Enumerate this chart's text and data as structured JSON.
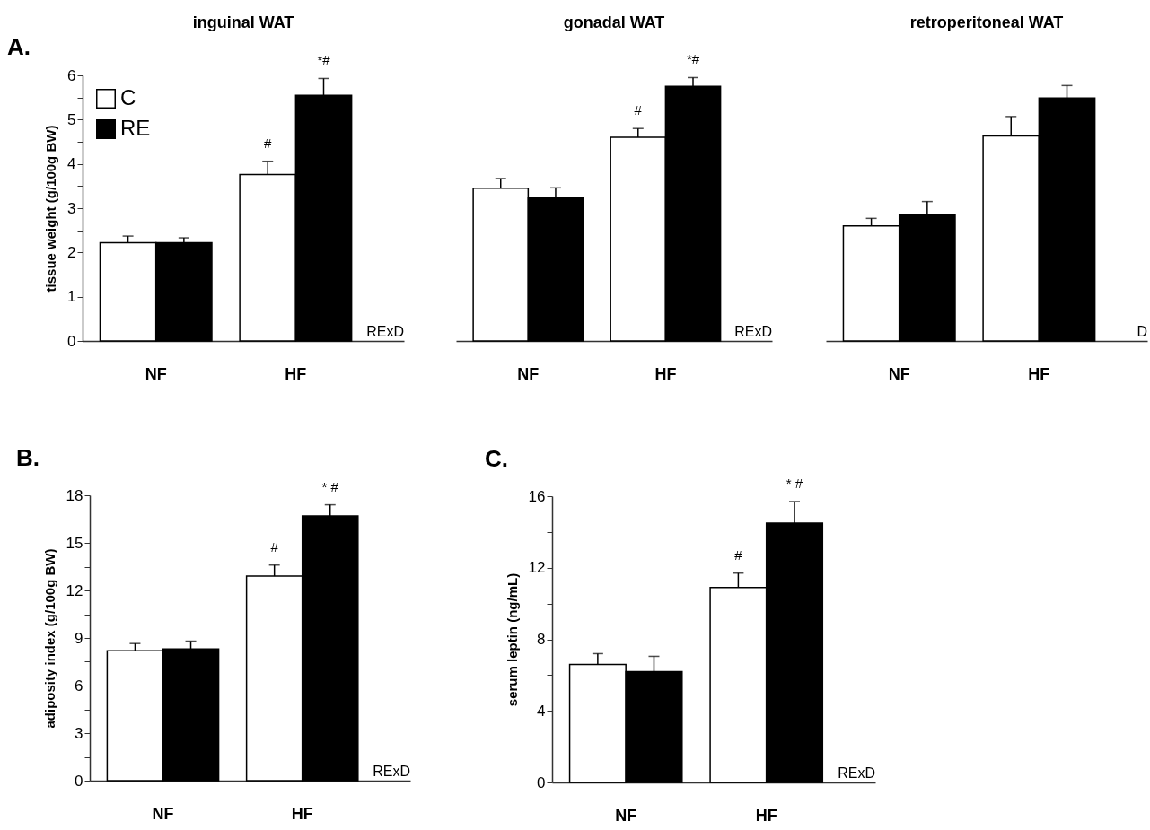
{
  "chart_data": [
    {
      "type": "bar",
      "title": "inguinal WAT",
      "ylabel": "tissue weight (g/100g BW)",
      "categories": [
        "NF",
        "HF"
      ],
      "ylim": [
        0,
        6
      ],
      "yticks": [
        0,
        {
          "value": 0.5,
          "label": null
        },
        1,
        {
          "value": 1.5,
          "label": null
        },
        2,
        {
          "value": 2.5,
          "label": null
        },
        3,
        {
          "value": 3.5,
          "label": null
        },
        4,
        {
          "value": 4.5,
          "label": null
        },
        5,
        {
          "value": 5.5,
          "label": null
        },
        6
      ],
      "legend": "top left",
      "annotations": [
        "RExD",
        "A."
      ],
      "series": [
        {
          "name": "C",
          "color": "#ffffff",
          "values": [
            2.22,
            3.76
          ],
          "errors": [
            [
              2.22,
              2.37
            ],
            [
              3.76,
              4.06
            ]
          ],
          "value_labels": [
            null,
            "#"
          ]
        },
        {
          "name": "RE",
          "color": "#000000",
          "values": [
            2.22,
            5.55
          ],
          "errors": [
            [
              2.22,
              2.33
            ],
            [
              5.55,
              5.93
            ]
          ],
          "value_labels": [
            null,
            "*#"
          ]
        }
      ]
    },
    {
      "type": "bar",
      "title": "gonadal WAT",
      "categories": [
        "NF",
        "HF"
      ],
      "ylim": [
        0,
        6
      ],
      "tick_labels": "x",
      "annotations": [
        "RExD"
      ],
      "series": [
        {
          "color": "#ffffff",
          "values": [
            3.45,
            4.6
          ],
          "errors": [
            [
              3.45,
              3.67
            ],
            [
              4.6,
              4.8
            ]
          ],
          "value_labels": [
            null,
            "#"
          ]
        },
        {
          "color": "#000000",
          "values": [
            3.25,
            5.75
          ],
          "errors": [
            [
              3.25,
              3.46
            ],
            [
              5.75,
              5.95
            ]
          ],
          "value_labels": [
            null,
            "*#"
          ]
        }
      ]
    },
    {
      "type": "bar",
      "title": "retroperitoneal WAT",
      "categories": [
        "NF",
        "HF"
      ],
      "ylim": [
        0,
        6
      ],
      "tick_labels": "x",
      "annotations": [
        "D"
      ],
      "series": [
        {
          "color": "#ffffff",
          "values": [
            2.6,
            4.63
          ],
          "errors": [
            [
              2.6,
              2.77
            ],
            [
              4.63,
              5.07
            ]
          ]
        },
        {
          "color": "#000000",
          "values": [
            2.85,
            5.49
          ],
          "errors": [
            [
              2.85,
              3.15
            ],
            [
              5.49,
              5.77
            ]
          ]
        }
      ]
    },
    {
      "type": "bar",
      "ylabel": "adiposity index (g/100g BW)",
      "categories": [
        "NF",
        "HF"
      ],
      "ylim": [
        0,
        18
      ],
      "yticks": [
        0,
        {
          "value": 1.5,
          "label": null
        },
        3,
        {
          "value": 4.5,
          "label": null
        },
        6,
        {
          "value": 7.5,
          "label": null
        },
        9,
        {
          "value": 10.5,
          "label": null
        },
        12,
        {
          "value": 13.5,
          "label": null
        },
        15,
        {
          "value": 16.5,
          "label": null
        },
        18
      ],
      "annotations": [
        "RExD",
        "B."
      ],
      "series": [
        {
          "color": "#ffffff",
          "values": [
            8.2,
            12.9
          ],
          "errors": [
            [
              8.2,
              8.65
            ],
            [
              12.9,
              13.6
            ]
          ],
          "value_labels": [
            null,
            "#"
          ]
        },
        {
          "color": "#000000",
          "values": [
            8.3,
            16.7
          ],
          "errors": [
            [
              8.3,
              8.8
            ],
            [
              16.7,
              17.4
            ]
          ],
          "value_labels": [
            null,
            "*  #"
          ]
        }
      ]
    },
    {
      "type": "bar",
      "ylabel": "serum leptin (ng/mL)",
      "categories": [
        "NF",
        "HF"
      ],
      "ylim": [
        0,
        16
      ],
      "yticks": [
        0,
        {
          "value": 2,
          "label": null
        },
        4,
        {
          "value": 6,
          "label": null
        },
        8,
        {
          "value": 10,
          "label": null
        },
        12,
        {
          "value": 14,
          "label": null
        },
        16
      ],
      "annotations": [
        "RExD",
        "C."
      ],
      "series": [
        {
          "color": "#ffffff",
          "values": [
            6.6,
            10.9
          ],
          "errors": [
            [
              6.6,
              7.2
            ],
            [
              10.9,
              11.7
            ]
          ],
          "value_labels": [
            null,
            "#"
          ]
        },
        {
          "color": "#000000",
          "values": [
            6.2,
            14.5
          ],
          "errors": [
            [
              6.2,
              7.05
            ],
            [
              14.5,
              15.7
            ]
          ],
          "value_labels": [
            null,
            "*  #"
          ]
        }
      ]
    }
  ]
}
